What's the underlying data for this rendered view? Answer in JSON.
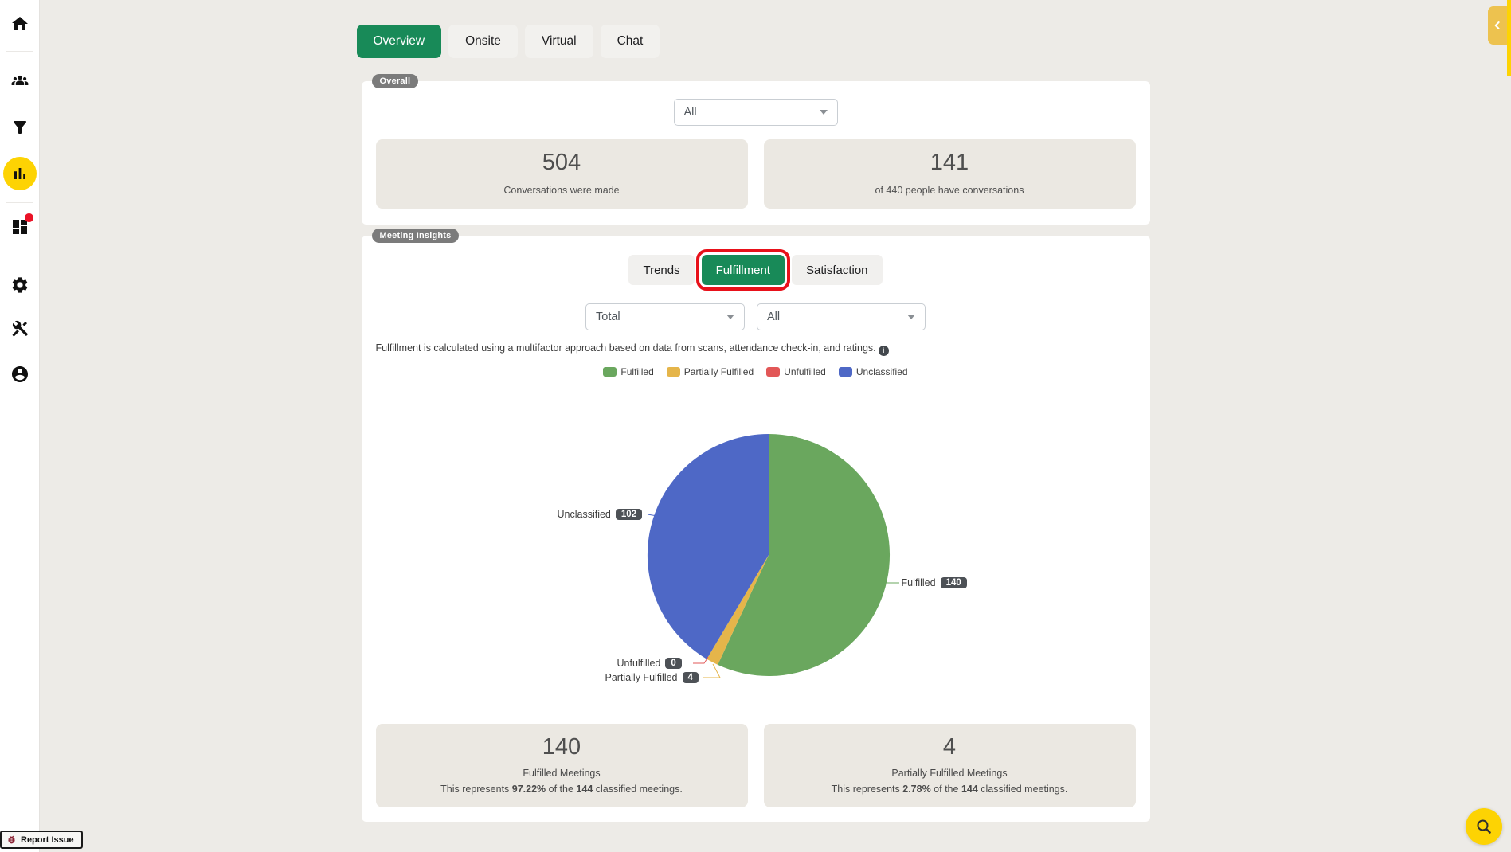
{
  "colors": {
    "accent_green": "#188a58",
    "accent_yellow": "#fdd303",
    "highlight_red": "#e8111a",
    "badge_gray": "#7b7b7b",
    "value_badge_gray": "#4d5156"
  },
  "sidebar": {
    "items": [
      {
        "icon": "home-icon"
      },
      {
        "icon": "people-icon"
      },
      {
        "icon": "filter-icon"
      },
      {
        "icon": "bar-chart-icon",
        "active": true
      },
      {
        "icon": "dashboard-icon",
        "notification": true
      },
      {
        "icon": "gear-icon"
      },
      {
        "icon": "tools-icon"
      },
      {
        "icon": "profile-icon"
      }
    ]
  },
  "top_tabs": {
    "items": [
      {
        "label": "Overview",
        "active": true
      },
      {
        "label": "Onsite"
      },
      {
        "label": "Virtual"
      },
      {
        "label": "Chat"
      }
    ]
  },
  "overall": {
    "badge": "Overall",
    "filter_value": "All",
    "stats": [
      {
        "value": "504",
        "caption": "Conversations were made"
      },
      {
        "value": "141",
        "caption": "of 440 people have conversations"
      }
    ]
  },
  "insights": {
    "badge": "Meeting Insights",
    "tabs": [
      {
        "label": "Trends"
      },
      {
        "label": "Fulfillment",
        "active": true,
        "highlighted": true
      },
      {
        "label": "Satisfaction"
      }
    ],
    "filters": {
      "metric": "Total",
      "scope": "All"
    },
    "note": "Fulfillment is calculated using a multifactor approach based on data from scans, attendance check-in, and ratings.",
    "stats": [
      {
        "value": "140",
        "title": "Fulfilled Meetings",
        "desc": {
          "prefix": "This represents ",
          "pct": "97.22%",
          "mid": " of the ",
          "total": "144",
          "suffix": " classified meetings."
        }
      },
      {
        "value": "4",
        "title": "Partially Fulfilled Meetings",
        "desc": {
          "prefix": "This represents ",
          "pct": "2.78%",
          "mid": " of the ",
          "total": "144",
          "suffix": " classified meetings."
        }
      }
    ]
  },
  "chart_data": {
    "type": "pie",
    "series": [
      {
        "label": "Fulfilled",
        "value": 140,
        "color": "#6aa75e"
      },
      {
        "label": "Partially Fulfilled",
        "value": 4,
        "color": "#e5b54a"
      },
      {
        "label": "Unfulfilled",
        "value": 0,
        "color": "#e25757"
      },
      {
        "label": "Unclassified",
        "value": 102,
        "color": "#4e68c6"
      }
    ],
    "total": 246,
    "start": "top",
    "direction": "clockwise",
    "legend_position": "top"
  },
  "report_issue": {
    "label": "Report Issue"
  },
  "fab": {
    "icon": "search-icon"
  },
  "panel_toggle": {
    "icon": "chevron-left-icon"
  }
}
